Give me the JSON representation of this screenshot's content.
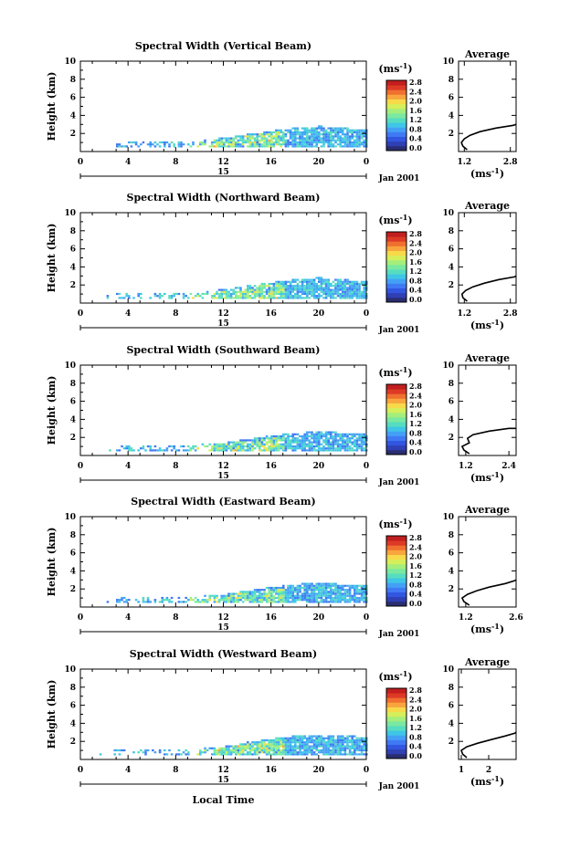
{
  "figure": {
    "xlabel": "Local Time",
    "ylabel": "Height (km)",
    "colorbar_unit_base": "(ms",
    "colorbar_unit_exp": "-1",
    "colorbar_unit_close": ")",
    "date_day": "15",
    "date_month_year": "Jan 2001",
    "profile_title": "Average",
    "profile_unit_base": "(ms",
    "profile_unit_exp": "-1",
    "profile_unit_close": ")"
  },
  "colors": {
    "colormap": [
      "#2a2d70",
      "#2f3fb4",
      "#3256e0",
      "#3f79f3",
      "#43a0f5",
      "#3fc6e6",
      "#56dcc0",
      "#7ae9a0",
      "#a5ee7c",
      "#d6ee5a",
      "#f7d94a",
      "#f8a53d",
      "#f0702f",
      "#dc3a26",
      "#c21e1e"
    ]
  },
  "chart_data": [
    {
      "type": "heatmap",
      "title": "Spectral Width (Vertical Beam)",
      "xlabel": "Local Time",
      "ylabel": "Height (km)",
      "x_ticks": [
        "0",
        "4",
        "8",
        "12",
        "16",
        "20",
        "0"
      ],
      "xlim": [
        0,
        24
      ],
      "y_ticks": [
        "2",
        "4",
        "6",
        "8",
        "10"
      ],
      "ylim": [
        0,
        10
      ],
      "colorbar_ticks": [
        "2.8",
        "2.4",
        "2.0",
        "1.6",
        "1.2",
        "0.8",
        "0.4",
        "0.0"
      ],
      "colorbar_range": [
        0,
        3
      ],
      "echo_top_km": [
        {
          "t": 3,
          "h": 1.1
        },
        {
          "t": 6,
          "h": 0.9
        },
        {
          "t": 9,
          "h": 1.0
        },
        {
          "t": 12,
          "h": 1.4
        },
        {
          "t": 14,
          "h": 1.8
        },
        {
          "t": 16,
          "h": 2.2
        },
        {
          "t": 18,
          "h": 2.5
        },
        {
          "t": 20,
          "h": 2.7
        },
        {
          "t": 22,
          "h": 2.5
        },
        {
          "t": 24,
          "h": 2.3
        }
      ],
      "profile": {
        "title": "Average",
        "xlabel": "(ms-1)",
        "x_ticks": [
          "1.2",
          "2.8"
        ],
        "xlim": [
          1.0,
          3.0
        ],
        "y_ticks": [
          "2",
          "4",
          "6",
          "8",
          "10"
        ],
        "ylim": [
          0,
          10
        ],
        "points": [
          [
            1.3,
            0.2
          ],
          [
            1.15,
            0.6
          ],
          [
            1.1,
            1.0
          ],
          [
            1.2,
            1.4
          ],
          [
            1.4,
            1.8
          ],
          [
            1.75,
            2.2
          ],
          [
            2.3,
            2.6
          ],
          [
            2.9,
            2.9
          ],
          [
            3.0,
            3.0
          ]
        ]
      }
    },
    {
      "type": "heatmap",
      "title": "Spectral Width (Northward Beam)",
      "xlabel": "Local Time",
      "ylabel": "Height (km)",
      "x_ticks": [
        "0",
        "4",
        "8",
        "12",
        "16",
        "20",
        "0"
      ],
      "xlim": [
        0,
        24
      ],
      "y_ticks": [
        "2",
        "4",
        "6",
        "8",
        "10"
      ],
      "ylim": [
        0,
        10
      ],
      "colorbar_ticks": [
        "2.8",
        "2.4",
        "2.0",
        "1.6",
        "1.2",
        "0.8",
        "0.4",
        "0.0"
      ],
      "colorbar_range": [
        0,
        3
      ],
      "echo_top_km": [
        {
          "t": 3,
          "h": 1.1
        },
        {
          "t": 6,
          "h": 0.9
        },
        {
          "t": 9,
          "h": 1.0
        },
        {
          "t": 12,
          "h": 1.4
        },
        {
          "t": 14,
          "h": 1.8
        },
        {
          "t": 16,
          "h": 2.2
        },
        {
          "t": 18,
          "h": 2.5
        },
        {
          "t": 20,
          "h": 2.7
        },
        {
          "t": 22,
          "h": 2.5
        },
        {
          "t": 24,
          "h": 2.3
        }
      ],
      "profile": {
        "title": "Average",
        "xlabel": "(ms-1)",
        "x_ticks": [
          "1.2",
          "2.8"
        ],
        "xlim": [
          1.0,
          3.0
        ],
        "y_ticks": [
          "2",
          "4",
          "6",
          "8",
          "10"
        ],
        "ylim": [
          0,
          10
        ],
        "points": [
          [
            1.3,
            0.2
          ],
          [
            1.15,
            0.6
          ],
          [
            1.12,
            1.0
          ],
          [
            1.25,
            1.4
          ],
          [
            1.5,
            1.8
          ],
          [
            1.9,
            2.2
          ],
          [
            2.4,
            2.6
          ],
          [
            2.95,
            2.9
          ],
          [
            3.0,
            3.0
          ]
        ]
      }
    },
    {
      "type": "heatmap",
      "title": "Spectral Width (Southward Beam)",
      "xlabel": "Local Time",
      "ylabel": "Height (km)",
      "x_ticks": [
        "0",
        "4",
        "8",
        "12",
        "16",
        "20",
        "0"
      ],
      "xlim": [
        0,
        24
      ],
      "y_ticks": [
        "2",
        "4",
        "6",
        "8",
        "10"
      ],
      "ylim": [
        0,
        10
      ],
      "colorbar_ticks": [
        "2.8",
        "2.4",
        "2.0",
        "1.6",
        "1.2",
        "0.8",
        "0.4",
        "0.0"
      ],
      "colorbar_range": [
        0,
        3
      ],
      "echo_top_km": [
        {
          "t": 3,
          "h": 1.0
        },
        {
          "t": 6,
          "h": 0.9
        },
        {
          "t": 9,
          "h": 1.0
        },
        {
          "t": 12,
          "h": 1.3
        },
        {
          "t": 14,
          "h": 1.7
        },
        {
          "t": 16,
          "h": 2.1
        },
        {
          "t": 18,
          "h": 2.4
        },
        {
          "t": 20,
          "h": 2.6
        },
        {
          "t": 22,
          "h": 2.4
        },
        {
          "t": 24,
          "h": 2.3
        }
      ],
      "profile": {
        "title": "Average",
        "xlabel": "(ms-1)",
        "x_ticks": [
          "1.2",
          "2.4"
        ],
        "xlim": [
          1.0,
          2.6
        ],
        "y_ticks": [
          "2",
          "4",
          "6",
          "8",
          "10"
        ],
        "ylim": [
          0,
          10
        ],
        "points": [
          [
            1.3,
            0.2
          ],
          [
            1.15,
            0.6
          ],
          [
            1.1,
            1.0
          ],
          [
            1.3,
            1.4
          ],
          [
            1.25,
            1.9
          ],
          [
            1.4,
            2.3
          ],
          [
            1.85,
            2.7
          ],
          [
            2.4,
            3.0
          ],
          [
            2.6,
            3.0
          ]
        ]
      }
    },
    {
      "type": "heatmap",
      "title": "Spectral Width (Eastward Beam)",
      "xlabel": "Local Time",
      "ylabel": "Height (km)",
      "x_ticks": [
        "0",
        "4",
        "8",
        "12",
        "16",
        "20",
        "0"
      ],
      "xlim": [
        0,
        24
      ],
      "y_ticks": [
        "2",
        "4",
        "6",
        "8",
        "10"
      ],
      "ylim": [
        0,
        10
      ],
      "colorbar_ticks": [
        "2.8",
        "2.4",
        "2.0",
        "1.6",
        "1.2",
        "0.8",
        "0.4",
        "0.0"
      ],
      "colorbar_range": [
        0,
        3
      ],
      "echo_top_km": [
        {
          "t": 3,
          "h": 1.1
        },
        {
          "t": 6,
          "h": 0.9
        },
        {
          "t": 9,
          "h": 1.0
        },
        {
          "t": 12,
          "h": 1.3
        },
        {
          "t": 14,
          "h": 1.7
        },
        {
          "t": 16,
          "h": 2.1
        },
        {
          "t": 18,
          "h": 2.4
        },
        {
          "t": 20,
          "h": 2.6
        },
        {
          "t": 22,
          "h": 2.4
        },
        {
          "t": 24,
          "h": 2.3
        }
      ],
      "profile": {
        "title": "Average",
        "xlabel": "(ms-1)",
        "x_ticks": [
          "1.2",
          "2.6"
        ],
        "xlim": [
          1.0,
          2.6
        ],
        "y_ticks": [
          "2",
          "4",
          "6",
          "8",
          "10"
        ],
        "ylim": [
          0,
          10
        ],
        "points": [
          [
            1.3,
            0.2
          ],
          [
            1.15,
            0.6
          ],
          [
            1.1,
            1.0
          ],
          [
            1.25,
            1.4
          ],
          [
            1.5,
            1.8
          ],
          [
            1.85,
            2.2
          ],
          [
            2.3,
            2.6
          ],
          [
            2.55,
            2.9
          ],
          [
            2.6,
            3.0
          ]
        ]
      }
    },
    {
      "type": "heatmap",
      "title": "Spectral Width (Westward Beam)",
      "xlabel": "Local Time",
      "ylabel": "Height (km)",
      "x_ticks": [
        "0",
        "4",
        "8",
        "12",
        "16",
        "20",
        "0"
      ],
      "xlim": [
        0,
        24
      ],
      "y_ticks": [
        "2",
        "4",
        "6",
        "8",
        "10"
      ],
      "ylim": [
        0,
        10
      ],
      "colorbar_ticks": [
        "2.8",
        "2.4",
        "2.0",
        "1.6",
        "1.2",
        "0.8",
        "0.4",
        "0.0"
      ],
      "colorbar_range": [
        0,
        3
      ],
      "echo_top_km": [
        {
          "t": 3,
          "h": 1.1
        },
        {
          "t": 6,
          "h": 0.9
        },
        {
          "t": 9,
          "h": 1.0
        },
        {
          "t": 12,
          "h": 1.3
        },
        {
          "t": 14,
          "h": 1.8
        },
        {
          "t": 16,
          "h": 2.2
        },
        {
          "t": 18,
          "h": 2.5
        },
        {
          "t": 20,
          "h": 2.6
        },
        {
          "t": 22,
          "h": 2.5
        },
        {
          "t": 24,
          "h": 2.4
        }
      ],
      "profile": {
        "title": "Average",
        "xlabel": "(ms-1)",
        "x_ticks": [
          "1",
          "2"
        ],
        "xlim": [
          0.9,
          3.0
        ],
        "y_ticks": [
          "2",
          "4",
          "6",
          "8",
          "10"
        ],
        "ylim": [
          0,
          10
        ],
        "points": [
          [
            1.2,
            0.2
          ],
          [
            1.05,
            0.6
          ],
          [
            1.0,
            1.0
          ],
          [
            1.2,
            1.4
          ],
          [
            1.6,
            1.8
          ],
          [
            2.1,
            2.2
          ],
          [
            2.6,
            2.6
          ],
          [
            2.95,
            2.9
          ],
          [
            3.0,
            3.0
          ]
        ]
      }
    }
  ]
}
